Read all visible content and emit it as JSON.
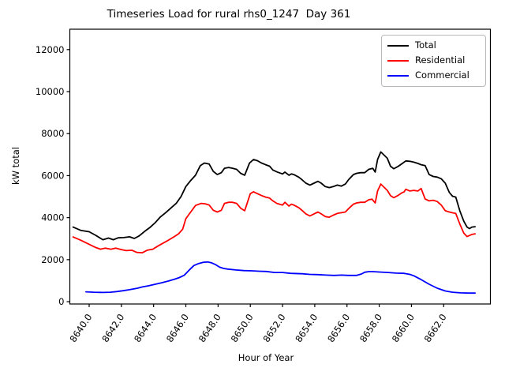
{
  "chart_data": {
    "type": "line",
    "title": "Timeseries Load for rural rhs0_1247  Day 361",
    "xlabel": "Hour of Year",
    "ylabel": "kW total",
    "grid": false,
    "legend_position": "upper right",
    "xlim": [
      8638.8,
      8664.9
    ],
    "ylim": [
      -110,
      12970
    ],
    "x_ticks": [
      {
        "value": 8640,
        "label": "8640.0"
      },
      {
        "value": 8642,
        "label": "8642.0"
      },
      {
        "value": 8644,
        "label": "8644.0"
      },
      {
        "value": 8646,
        "label": "8646.0"
      },
      {
        "value": 8648,
        "label": "8648.0"
      },
      {
        "value": 8650,
        "label": "8650.0"
      },
      {
        "value": 8652,
        "label": "8652.0"
      },
      {
        "value": 8654,
        "label": "8654.0"
      },
      {
        "value": 8656,
        "label": "8656.0"
      },
      {
        "value": 8658,
        "label": "8658.0"
      },
      {
        "value": 8660,
        "label": "8660.0"
      },
      {
        "value": 8662,
        "label": "8662.0"
      }
    ],
    "y_ticks": [
      {
        "value": 0,
        "label": "0"
      },
      {
        "value": 2000,
        "label": "2000"
      },
      {
        "value": 4000,
        "label": "4000"
      },
      {
        "value": 6000,
        "label": "6000"
      },
      {
        "value": 8000,
        "label": "8000"
      },
      {
        "value": 10000,
        "label": "10000"
      },
      {
        "value": 12000,
        "label": "12000"
      }
    ],
    "series": [
      {
        "name": "Total",
        "color": "#000000",
        "points": [
          [
            8639.0,
            3550
          ],
          [
            8639.5,
            3390
          ],
          [
            8640.0,
            3330
          ],
          [
            8640.4,
            3160
          ],
          [
            8640.85,
            2950
          ],
          [
            8641.2,
            3030
          ],
          [
            8641.5,
            2950
          ],
          [
            8641.8,
            3040
          ],
          [
            8642.15,
            3050
          ],
          [
            8642.5,
            3090
          ],
          [
            8642.8,
            3010
          ],
          [
            8643.1,
            3130
          ],
          [
            8643.45,
            3350
          ],
          [
            8643.8,
            3550
          ],
          [
            8644.1,
            3760
          ],
          [
            8644.4,
            4020
          ],
          [
            8644.75,
            4240
          ],
          [
            8645.1,
            4480
          ],
          [
            8645.4,
            4680
          ],
          [
            8645.7,
            5000
          ],
          [
            8646.0,
            5480
          ],
          [
            8646.3,
            5770
          ],
          [
            8646.6,
            6020
          ],
          [
            8646.9,
            6480
          ],
          [
            8647.15,
            6600
          ],
          [
            8647.45,
            6550
          ],
          [
            8647.7,
            6200
          ],
          [
            8647.95,
            6050
          ],
          [
            8648.2,
            6140
          ],
          [
            8648.4,
            6350
          ],
          [
            8648.65,
            6390
          ],
          [
            8648.9,
            6350
          ],
          [
            8649.15,
            6300
          ],
          [
            8649.4,
            6110
          ],
          [
            8649.65,
            6020
          ],
          [
            8649.95,
            6600
          ],
          [
            8650.2,
            6770
          ],
          [
            8650.45,
            6710
          ],
          [
            8650.7,
            6600
          ],
          [
            8650.95,
            6520
          ],
          [
            8651.2,
            6450
          ],
          [
            8651.4,
            6270
          ],
          [
            8651.65,
            6180
          ],
          [
            8652.0,
            6080
          ],
          [
            8652.15,
            6170
          ],
          [
            8652.4,
            6020
          ],
          [
            8652.55,
            6080
          ],
          [
            8652.7,
            6050
          ],
          [
            8653.0,
            5930
          ],
          [
            8653.2,
            5810
          ],
          [
            8653.45,
            5640
          ],
          [
            8653.7,
            5550
          ],
          [
            8653.95,
            5640
          ],
          [
            8654.2,
            5730
          ],
          [
            8654.4,
            5640
          ],
          [
            8654.65,
            5480
          ],
          [
            8654.9,
            5430
          ],
          [
            8655.15,
            5480
          ],
          [
            8655.4,
            5550
          ],
          [
            8655.65,
            5500
          ],
          [
            8655.9,
            5600
          ],
          [
            8656.1,
            5810
          ],
          [
            8656.4,
            6050
          ],
          [
            8656.6,
            6110
          ],
          [
            8656.85,
            6140
          ],
          [
            8657.1,
            6140
          ],
          [
            8657.35,
            6300
          ],
          [
            8657.6,
            6350
          ],
          [
            8657.75,
            6170
          ],
          [
            8657.9,
            6770
          ],
          [
            8658.1,
            7130
          ],
          [
            8658.3,
            6980
          ],
          [
            8658.5,
            6830
          ],
          [
            8658.7,
            6450
          ],
          [
            8658.9,
            6330
          ],
          [
            8659.15,
            6430
          ],
          [
            8659.4,
            6560
          ],
          [
            8659.65,
            6700
          ],
          [
            8659.9,
            6680
          ],
          [
            8660.15,
            6640
          ],
          [
            8660.4,
            6580
          ],
          [
            8660.6,
            6520
          ],
          [
            8660.85,
            6480
          ],
          [
            8661.1,
            6050
          ],
          [
            8661.35,
            5960
          ],
          [
            8661.6,
            5930
          ],
          [
            8661.85,
            5850
          ],
          [
            8662.1,
            5640
          ],
          [
            8662.35,
            5200
          ],
          [
            8662.55,
            5020
          ],
          [
            8662.75,
            4980
          ],
          [
            8663.0,
            4330
          ],
          [
            8663.25,
            3830
          ],
          [
            8663.45,
            3550
          ],
          [
            8663.6,
            3480
          ],
          [
            8663.75,
            3550
          ],
          [
            8663.95,
            3570
          ]
        ]
      },
      {
        "name": "Residential",
        "color": "#ff0000",
        "points": [
          [
            8639.0,
            3080
          ],
          [
            8639.5,
            2920
          ],
          [
            8640.0,
            2730
          ],
          [
            8640.4,
            2580
          ],
          [
            8640.7,
            2500
          ],
          [
            8641.0,
            2550
          ],
          [
            8641.35,
            2500
          ],
          [
            8641.65,
            2550
          ],
          [
            8642.0,
            2480
          ],
          [
            8642.3,
            2430
          ],
          [
            8642.65,
            2450
          ],
          [
            8642.95,
            2350
          ],
          [
            8643.3,
            2330
          ],
          [
            8643.6,
            2450
          ],
          [
            8643.95,
            2500
          ],
          [
            8644.25,
            2640
          ],
          [
            8644.6,
            2790
          ],
          [
            8644.9,
            2920
          ],
          [
            8645.25,
            3080
          ],
          [
            8645.55,
            3230
          ],
          [
            8645.8,
            3450
          ],
          [
            8646.0,
            3950
          ],
          [
            8646.3,
            4270
          ],
          [
            8646.6,
            4580
          ],
          [
            8646.95,
            4680
          ],
          [
            8647.2,
            4660
          ],
          [
            8647.45,
            4600
          ],
          [
            8647.7,
            4350
          ],
          [
            8647.95,
            4270
          ],
          [
            8648.2,
            4350
          ],
          [
            8648.4,
            4680
          ],
          [
            8648.65,
            4730
          ],
          [
            8648.9,
            4730
          ],
          [
            8649.15,
            4680
          ],
          [
            8649.4,
            4450
          ],
          [
            8649.65,
            4330
          ],
          [
            8650.0,
            5140
          ],
          [
            8650.2,
            5230
          ],
          [
            8650.45,
            5140
          ],
          [
            8650.7,
            5050
          ],
          [
            8650.95,
            4980
          ],
          [
            8651.2,
            4930
          ],
          [
            8651.4,
            4800
          ],
          [
            8651.65,
            4680
          ],
          [
            8652.0,
            4600
          ],
          [
            8652.15,
            4730
          ],
          [
            8652.4,
            4550
          ],
          [
            8652.55,
            4640
          ],
          [
            8652.7,
            4600
          ],
          [
            8653.0,
            4480
          ],
          [
            8653.2,
            4350
          ],
          [
            8653.45,
            4180
          ],
          [
            8653.7,
            4080
          ],
          [
            8653.95,
            4180
          ],
          [
            8654.2,
            4270
          ],
          [
            8654.4,
            4180
          ],
          [
            8654.65,
            4050
          ],
          [
            8654.9,
            4020
          ],
          [
            8655.15,
            4120
          ],
          [
            8655.4,
            4200
          ],
          [
            8655.9,
            4270
          ],
          [
            8656.1,
            4430
          ],
          [
            8656.4,
            4640
          ],
          [
            8656.6,
            4700
          ],
          [
            8656.85,
            4730
          ],
          [
            8657.1,
            4730
          ],
          [
            8657.35,
            4850
          ],
          [
            8657.55,
            4880
          ],
          [
            8657.75,
            4700
          ],
          [
            8657.9,
            5270
          ],
          [
            8658.1,
            5600
          ],
          [
            8658.3,
            5450
          ],
          [
            8658.5,
            5300
          ],
          [
            8658.7,
            5050
          ],
          [
            8658.9,
            4950
          ],
          [
            8659.15,
            5050
          ],
          [
            8659.4,
            5180
          ],
          [
            8659.55,
            5230
          ],
          [
            8659.65,
            5350
          ],
          [
            8659.9,
            5270
          ],
          [
            8660.15,
            5300
          ],
          [
            8660.4,
            5270
          ],
          [
            8660.6,
            5390
          ],
          [
            8660.85,
            4890
          ],
          [
            8661.1,
            4800
          ],
          [
            8661.35,
            4830
          ],
          [
            8661.6,
            4770
          ],
          [
            8661.85,
            4600
          ],
          [
            8662.1,
            4330
          ],
          [
            8662.35,
            4270
          ],
          [
            8662.55,
            4230
          ],
          [
            8662.75,
            4200
          ],
          [
            8663.0,
            3700
          ],
          [
            8663.25,
            3260
          ],
          [
            8663.45,
            3100
          ],
          [
            8663.75,
            3200
          ],
          [
            8663.95,
            3230
          ]
        ]
      },
      {
        "name": "Commercial",
        "color": "#0000ff",
        "points": [
          [
            8639.8,
            470
          ],
          [
            8640.3,
            450
          ],
          [
            8640.85,
            440
          ],
          [
            8641.3,
            450
          ],
          [
            8641.7,
            480
          ],
          [
            8642.1,
            520
          ],
          [
            8642.5,
            570
          ],
          [
            8643.0,
            640
          ],
          [
            8643.3,
            700
          ],
          [
            8643.7,
            760
          ],
          [
            8644.1,
            830
          ],
          [
            8644.5,
            900
          ],
          [
            8644.9,
            980
          ],
          [
            8645.3,
            1070
          ],
          [
            8645.6,
            1150
          ],
          [
            8645.9,
            1260
          ],
          [
            8646.2,
            1500
          ],
          [
            8646.5,
            1720
          ],
          [
            8646.8,
            1820
          ],
          [
            8647.1,
            1880
          ],
          [
            8647.35,
            1890
          ],
          [
            8647.6,
            1850
          ],
          [
            8647.85,
            1760
          ],
          [
            8648.1,
            1640
          ],
          [
            8648.35,
            1580
          ],
          [
            8648.6,
            1550
          ],
          [
            8649.1,
            1510
          ],
          [
            8649.6,
            1480
          ],
          [
            8650.1,
            1470
          ],
          [
            8650.55,
            1450
          ],
          [
            8651.0,
            1440
          ],
          [
            8651.5,
            1390
          ],
          [
            8652.0,
            1390
          ],
          [
            8652.5,
            1350
          ],
          [
            8653.2,
            1330
          ],
          [
            8653.7,
            1300
          ],
          [
            8654.2,
            1290
          ],
          [
            8654.7,
            1265
          ],
          [
            8655.2,
            1250
          ],
          [
            8655.65,
            1265
          ],
          [
            8656.1,
            1250
          ],
          [
            8656.6,
            1250
          ],
          [
            8656.9,
            1320
          ],
          [
            8657.1,
            1400
          ],
          [
            8657.35,
            1430
          ],
          [
            8657.6,
            1430
          ],
          [
            8658.1,
            1410
          ],
          [
            8658.55,
            1390
          ],
          [
            8659.05,
            1360
          ],
          [
            8659.55,
            1350
          ],
          [
            8659.9,
            1300
          ],
          [
            8660.15,
            1230
          ],
          [
            8660.6,
            1050
          ],
          [
            8661.1,
            830
          ],
          [
            8661.6,
            640
          ],
          [
            8662.1,
            510
          ],
          [
            8662.55,
            450
          ],
          [
            8663.05,
            420
          ],
          [
            8663.55,
            410
          ],
          [
            8663.95,
            410
          ]
        ]
      }
    ]
  }
}
